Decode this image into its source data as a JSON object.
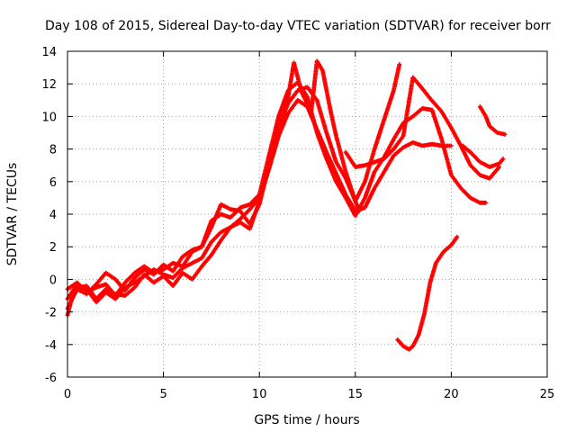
{
  "chart_data": {
    "type": "scatter",
    "title": "Day 108 of 2015, Sidereal Day-to-day VTEC variation (SDTVAR) for receiver borr",
    "xlabel": "GPS time / hours",
    "ylabel": "SDTVAR / TECUs",
    "xlim": [
      0,
      25
    ],
    "ylim": [
      -6,
      14
    ],
    "xticks": [
      0,
      5,
      10,
      15,
      20,
      25
    ],
    "yticks": [
      -6,
      -4,
      -2,
      0,
      2,
      4,
      6,
      8,
      10,
      12,
      14
    ],
    "xtick_labels": [
      "0",
      "5",
      "10",
      "15",
      "20",
      "25"
    ],
    "ytick_labels": [
      "-6",
      "-4",
      "-2",
      "0",
      "2",
      "4",
      "6",
      "8",
      "10",
      "12",
      "14"
    ],
    "grid": true,
    "legend": "none",
    "marker": "plus",
    "color": "#ff0000",
    "series": [
      {
        "x": [
          0.0,
          0.3,
          0.6,
          1.0,
          1.5,
          2.0,
          2.5,
          3.0,
          3.5,
          4.0,
          4.5,
          5.0,
          5.5,
          6.0,
          6.5,
          7.0,
          7.5,
          8.0,
          8.5,
          9.0,
          9.5,
          10.0,
          10.3,
          10.6,
          11.0,
          11.5,
          12.0,
          12.5,
          13.0,
          13.5,
          14.0,
          14.5,
          15.0,
          15.5,
          16.0,
          16.5,
          17.0,
          17.5,
          18.0,
          18.5,
          19.0,
          19.5,
          20.0
        ],
        "y": [
          -2.2,
          -0.8,
          -0.5,
          -0.4,
          -1.2,
          -0.6,
          -0.9,
          -1.0,
          -0.5,
          0.3,
          -0.2,
          0.2,
          -0.4,
          0.4,
          0.0,
          0.8,
          1.5,
          2.4,
          3.2,
          3.5,
          3.1,
          4.8,
          6.0,
          7.2,
          8.8,
          10.2,
          11.0,
          10.6,
          9.2,
          7.8,
          6.5,
          5.2,
          4.2,
          4.4,
          5.6,
          6.6,
          7.6,
          8.1,
          8.4,
          8.2,
          8.3,
          8.2,
          8.2
        ]
      },
      {
        "x": [
          0.0,
          0.5,
          1.0,
          1.5,
          2.0,
          2.5,
          3.0,
          3.5,
          4.0,
          4.5,
          5.0,
          5.5,
          6.0,
          6.5,
          7.0,
          7.5,
          8.0,
          8.5,
          9.0,
          9.5,
          10.0,
          10.5,
          11.0,
          11.5,
          12.0,
          12.5,
          13.0,
          13.5,
          14.0,
          14.5,
          15.0,
          15.5,
          16.0,
          16.5,
          17.0,
          17.5,
          18.0,
          18.5,
          19.0,
          19.5,
          20.0,
          20.5,
          21.0,
          21.5,
          21.8
        ],
        "y": [
          -1.8,
          -0.6,
          -0.9,
          -0.3,
          0.4,
          0.0,
          -0.7,
          0.1,
          0.6,
          0.3,
          0.9,
          0.5,
          1.4,
          1.8,
          2.0,
          3.6,
          4.0,
          3.8,
          4.4,
          4.6,
          5.2,
          7.6,
          10.0,
          11.6,
          12.1,
          11.2,
          9.0,
          7.4,
          6.0,
          5.0,
          3.9,
          5.0,
          6.6,
          7.5,
          8.6,
          9.6,
          10.0,
          10.5,
          10.4,
          8.6,
          6.4,
          5.6,
          5.0,
          4.7,
          4.7
        ]
      },
      {
        "x": [
          0.0,
          0.5,
          1.0,
          1.5,
          2.0,
          2.5,
          3.0,
          3.5,
          4.0,
          4.5,
          5.0,
          5.5,
          6.0,
          6.5,
          7.0,
          7.5,
          8.0,
          8.5,
          9.0,
          9.5,
          10.0,
          10.5,
          11.0,
          11.5,
          11.8,
          12.2,
          12.7,
          13.0,
          13.3,
          13.7,
          14.0,
          14.5,
          15.0,
          15.5,
          16.0,
          16.5,
          17.0,
          17.3
        ],
        "y": [
          -1.2,
          -0.3,
          -0.6,
          -1.4,
          -0.8,
          -1.2,
          -0.5,
          -0.2,
          0.2,
          0.6,
          0.3,
          0.1,
          0.7,
          1.0,
          1.3,
          2.3,
          2.9,
          3.2,
          3.7,
          4.3,
          5.0,
          6.8,
          8.8,
          11.2,
          13.3,
          11.5,
          10.3,
          13.4,
          12.8,
          10.4,
          8.8,
          6.6,
          4.8,
          6.0,
          8.0,
          9.8,
          11.6,
          13.2
        ]
      },
      {
        "x": [
          0.0,
          0.5,
          1.0,
          1.5,
          2.0,
          2.5,
          3.0,
          3.5,
          4.0,
          4.5,
          5.0,
          5.5,
          6.0,
          6.5,
          7.0,
          7.5,
          8.0,
          8.5,
          9.0,
          9.5,
          10.0,
          10.5,
          11.0,
          11.5,
          12.0,
          12.5,
          13.0,
          13.5,
          14.0,
          14.5,
          15.0,
          15.2
        ],
        "y": [
          -0.6,
          -0.2,
          -0.8,
          -0.5,
          -0.3,
          -1.0,
          -0.2,
          0.4,
          0.8,
          0.4,
          0.6,
          1.0,
          0.8,
          1.7,
          2.0,
          3.2,
          4.6,
          4.3,
          4.2,
          3.4,
          4.6,
          7.0,
          9.4,
          10.8,
          11.6,
          11.8,
          11.0,
          9.0,
          7.2,
          6.2,
          4.8,
          4.2
        ]
      },
      {
        "x": [
          14.5,
          15.0,
          15.5,
          16.0,
          16.5,
          17.0,
          17.5,
          18.0,
          18.5,
          18.9,
          19.5,
          20.0,
          20.5,
          21.0,
          21.5,
          22.0,
          22.5
        ],
        "y": [
          7.8,
          6.9,
          7.0,
          7.2,
          7.4,
          8.0,
          8.8,
          12.4,
          11.7,
          11.1,
          10.3,
          9.3,
          8.2,
          7.0,
          6.4,
          6.2,
          6.9
        ]
      },
      {
        "x": [
          20.6,
          21.0,
          21.5,
          22.0,
          22.5,
          22.7
        ],
        "y": [
          8.2,
          7.8,
          7.2,
          6.9,
          7.1,
          7.4
        ]
      },
      {
        "x": [
          21.5,
          21.8,
          22.0,
          22.4,
          22.8
        ],
        "y": [
          10.6,
          10.0,
          9.4,
          9.0,
          8.9
        ]
      },
      {
        "x": [
          17.2,
          17.5,
          17.8,
          18.0,
          18.3,
          18.6,
          18.9,
          19.2,
          19.6,
          20.0,
          20.3
        ],
        "y": [
          -3.7,
          -4.1,
          -4.3,
          -4.1,
          -3.4,
          -2.1,
          -0.2,
          1.0,
          1.7,
          2.1,
          2.6
        ]
      }
    ]
  }
}
